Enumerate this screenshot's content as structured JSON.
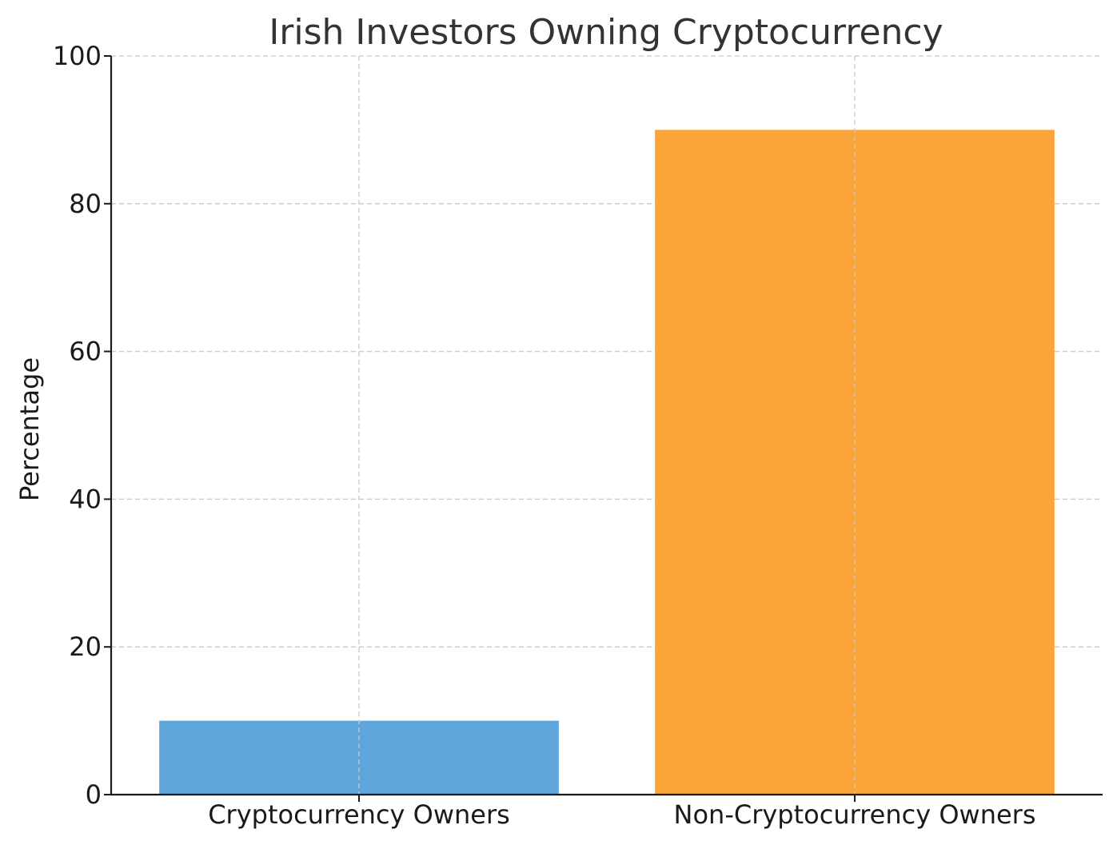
{
  "chart_data": {
    "type": "bar",
    "title": "Irish Investors Owning Cryptocurrency",
    "xlabel": "",
    "ylabel": "Percentage",
    "categories": [
      "Cryptocurrency Owners",
      "Non-Cryptocurrency Owners"
    ],
    "values": [
      10,
      90
    ],
    "colors": [
      "#5da5da",
      "#faa43a"
    ],
    "ylim": [
      0,
      100
    ],
    "yticks": [
      0,
      20,
      40,
      60,
      80,
      100
    ],
    "grid": true,
    "legend": "none"
  }
}
